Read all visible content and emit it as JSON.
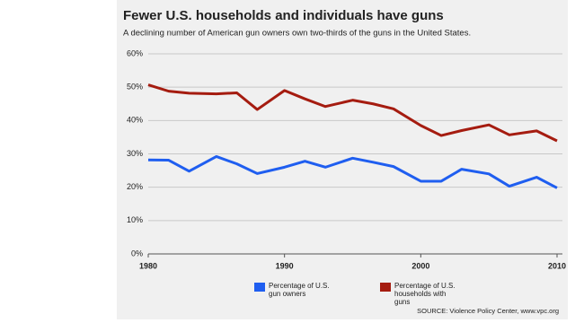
{
  "chart_data": {
    "type": "line",
    "title": "Fewer U.S. households and individuals have guns",
    "subtitle": "A declining number of American gun owners own two-thirds of the guns in the United States.",
    "source": "SOURCE: Violence Policy Center, www.vpc.org",
    "x": [
      1980,
      1981.5,
      1983,
      1985,
      1986.5,
      1988,
      1990,
      1991.5,
      1993,
      1995,
      1996.5,
      1998,
      2000,
      2001.5,
      2003,
      2005,
      2006.5,
      2008.5,
      2010
    ],
    "series": [
      {
        "name": "Percentage of U.S. gun owners",
        "color": "#1f5ef0",
        "values": [
          28.2,
          28.1,
          24.8,
          29.2,
          27.0,
          24.1,
          26.0,
          27.8,
          26.0,
          28.7,
          27.5,
          26.2,
          21.8,
          21.8,
          25.4,
          24.0,
          20.3,
          23.0,
          19.8
        ]
      },
      {
        "name": "Percentage of U.S. households with guns",
        "color": "#a51c10",
        "values": [
          50.7,
          48.8,
          48.2,
          48.0,
          48.3,
          43.3,
          49.0,
          46.5,
          44.2,
          46.1,
          45.0,
          43.5,
          38.5,
          35.5,
          37.0,
          38.7,
          35.7,
          36.9,
          33.9
        ]
      }
    ],
    "xlim": [
      1980,
      2010
    ],
    "xticks": [
      1980,
      1990,
      2000,
      2010
    ],
    "ylim": [
      0,
      60
    ],
    "yticks": [
      {
        "value": 0,
        "label": "0%"
      },
      {
        "value": 10,
        "label": "10%"
      },
      {
        "value": 20,
        "label": "20%"
      },
      {
        "value": 30,
        "label": "30%"
      },
      {
        "value": 40,
        "label": "40%"
      },
      {
        "value": 50,
        "label": "50%"
      },
      {
        "value": 60,
        "label": "60%"
      }
    ],
    "grid": true
  }
}
